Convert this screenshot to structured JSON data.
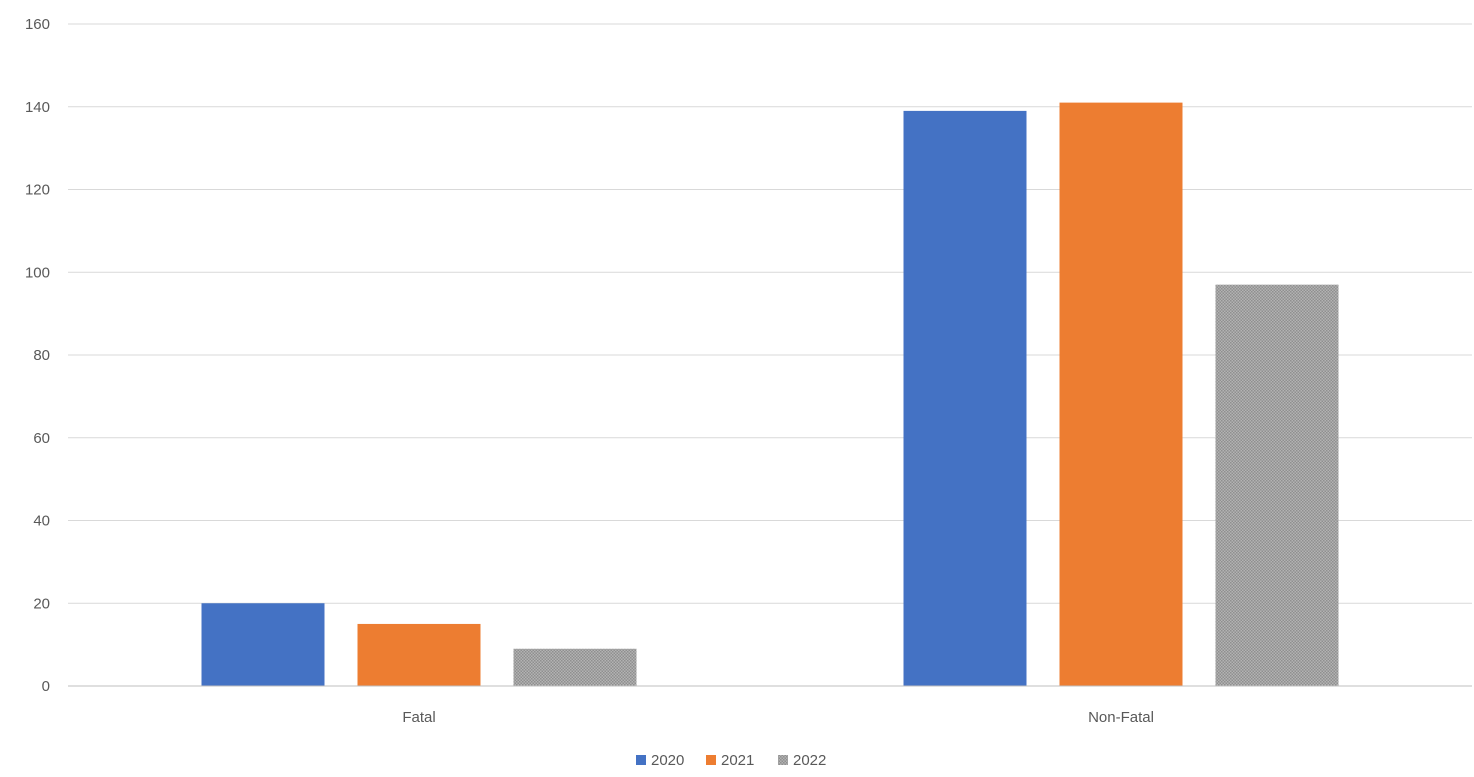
{
  "chart_data": {
    "type": "bar",
    "title": "",
    "xlabel": "",
    "ylabel": "",
    "categories": [
      "Fatal",
      "Non-Fatal"
    ],
    "series": [
      {
        "name": "2020",
        "values": [
          20,
          139
        ],
        "color": "#4472c4",
        "pattern": "solid"
      },
      {
        "name": "2021",
        "values": [
          15,
          141
        ],
        "color": "#ed7d31",
        "pattern": "solid"
      },
      {
        "name": "2022",
        "values": [
          9,
          97
        ],
        "color": "#a5a5a5",
        "pattern": "dotted-fill"
      }
    ],
    "ylim": [
      0,
      160
    ],
    "yticks": [
      0,
      20,
      40,
      60,
      80,
      100,
      120,
      140,
      160
    ],
    "grid": true,
    "legend_position": "bottom-center"
  }
}
